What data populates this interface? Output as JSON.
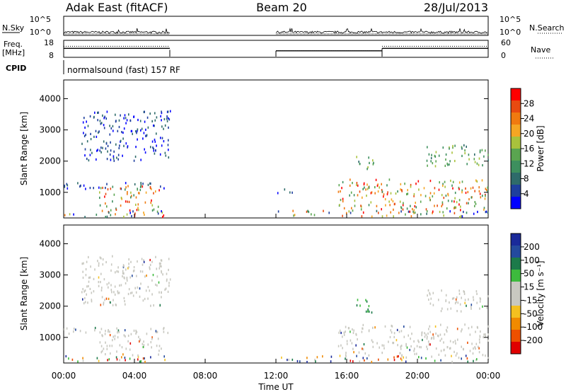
{
  "header": {
    "title": "Adak East (fitACF)",
    "beam": "Beam 20",
    "date": "28/Jul/2013"
  },
  "strip_labels": {
    "nsky": "N.Sky",
    "nsearch": "N.Search",
    "freq_line1": "Freq.",
    "freq_line2": "[MHz]",
    "nave": "Nave",
    "cpid": "CPID",
    "cpid_value": "normalsound (fast) 157 RF"
  },
  "scale_labels": {
    "noise_ticks": [
      "10^5",
      "10^0"
    ],
    "freq_ticks": [
      "18",
      "8"
    ],
    "nave_ticks": [
      "60",
      "0"
    ]
  },
  "colors": {
    "power_scale": [
      "#0000ff",
      "#1e3f9e",
      "#2e6b6a",
      "#3d8f5e",
      "#5aa550",
      "#a9c23c",
      "#f5a623",
      "#f07a10",
      "#e84a10",
      "#ff0000"
    ],
    "velocity_scale": [
      "#e00000",
      "#ee5000",
      "#f08a00",
      "#f4c020",
      "#c8c8c0",
      "#c8c8c0",
      "#3dbb3d",
      "#1c7a4a",
      "#244a9e",
      "#1a2a9a"
    ]
  },
  "chart_data": [
    {
      "type": "heatmap",
      "name": "power",
      "ylabel": "Slant Range [km]",
      "colorbar_label": "Power [dB]",
      "colorbar_ticks": [
        "28",
        "24",
        "20",
        "16",
        "12",
        "8",
        "4"
      ],
      "ylim": [
        180,
        4600
      ],
      "yticks": [
        1000,
        2000,
        3000,
        4000
      ],
      "xticks": [
        "00:00",
        "04:00",
        "08:00",
        "12:00",
        "16:00",
        "20:00",
        "00:00"
      ],
      "xlabel": "Time UT",
      "xrange_hours": [
        0,
        24
      ],
      "data_windows_hours": [
        [
          0,
          6
        ],
        [
          12,
          24
        ]
      ],
      "echo_features": [
        {
          "from": 0.0,
          "to": 6.0,
          "range_km": [
            200,
            400
          ],
          "level": "mixed"
        },
        {
          "from": 0.0,
          "to": 6.0,
          "range_km": [
            1100,
            1300
          ],
          "level": "low"
        },
        {
          "from": 2.0,
          "to": 5.5,
          "range_km": [
            400,
            1200
          ],
          "level": "high"
        },
        {
          "from": 1.0,
          "to": 6.0,
          "range_km": [
            2000,
            3600
          ],
          "level": "low"
        },
        {
          "from": 12.0,
          "to": 24.0,
          "range_km": [
            200,
            400
          ],
          "level": "mixed"
        },
        {
          "from": 12.0,
          "to": 13.0,
          "range_km": [
            900,
            1100
          ],
          "level": "low"
        },
        {
          "from": 15.5,
          "to": 24.0,
          "range_km": [
            400,
            1400
          ],
          "level": "high"
        },
        {
          "from": 16.5,
          "to": 17.5,
          "range_km": [
            1700,
            2200
          ],
          "level": "medium"
        },
        {
          "from": 20.5,
          "to": 24.0,
          "range_km": [
            1800,
            2500
          ],
          "level": "medium"
        }
      ]
    },
    {
      "type": "heatmap",
      "name": "velocity",
      "ylabel": "Slant Range [km]",
      "colorbar_label": "Velocity [m s⁻¹]",
      "colorbar_ticks": [
        "200",
        "100",
        "50",
        "15",
        "-15",
        "-50",
        "-100",
        "-200"
      ],
      "ylim": [
        180,
        4600
      ],
      "yticks": [
        1000,
        2000,
        3000,
        4000
      ],
      "xticks": [
        "00:00",
        "04:00",
        "08:00",
        "12:00",
        "16:00",
        "20:00",
        "00:00"
      ],
      "xlabel": "Time UT",
      "xrange_hours": [
        0,
        24
      ],
      "data_windows_hours": [
        [
          0,
          6
        ],
        [
          12,
          24
        ]
      ],
      "echo_features": [
        {
          "from": 0.0,
          "to": 6.0,
          "range_km": [
            200,
            400
          ],
          "level": "mixed"
        },
        {
          "from": 0.0,
          "to": 6.0,
          "range_km": [
            1100,
            1300
          ],
          "level": "near-zero"
        },
        {
          "from": 2.0,
          "to": 5.5,
          "range_km": [
            400,
            1200
          ],
          "level": "near-zero"
        },
        {
          "from": 1.0,
          "to": 6.0,
          "range_km": [
            2000,
            3600
          ],
          "level": "near-zero"
        },
        {
          "from": 12.0,
          "to": 24.0,
          "range_km": [
            200,
            400
          ],
          "level": "mixed"
        },
        {
          "from": 15.5,
          "to": 24.0,
          "range_km": [
            400,
            1400
          ],
          "level": "near-zero"
        },
        {
          "from": 16.5,
          "to": 17.5,
          "range_km": [
            1700,
            2200
          ],
          "level": "positive"
        },
        {
          "from": 20.5,
          "to": 24.0,
          "range_km": [
            1800,
            2500
          ],
          "level": "near-zero"
        }
      ]
    }
  ],
  "freq_trace": {
    "segments_hours": [
      [
        0,
        6,
        13.3
      ],
      [
        12,
        18,
        11.7
      ],
      [
        18,
        24,
        13.3
      ]
    ]
  },
  "nave_trace": {
    "segments_hours": [
      [
        0,
        6,
        40
      ],
      [
        12,
        18,
        22
      ],
      [
        18,
        24,
        40
      ]
    ]
  }
}
